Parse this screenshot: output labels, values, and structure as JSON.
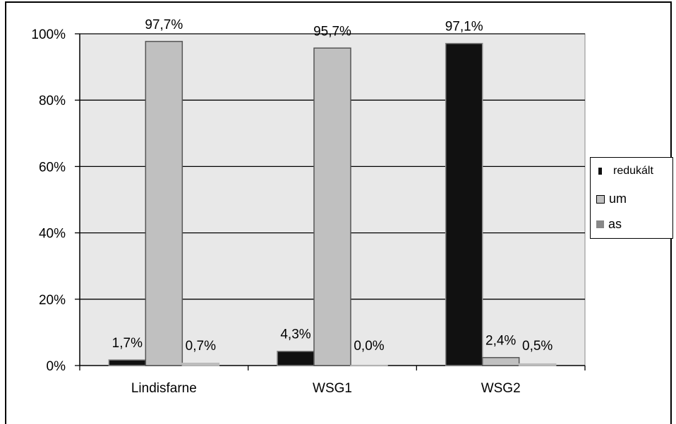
{
  "chart_data": {
    "type": "bar",
    "categories": [
      "Lindisfarne",
      "WSG1",
      "WSG2"
    ],
    "series": [
      {
        "name": "redukált",
        "values": [
          1.7,
          4.3,
          97.1
        ],
        "labels": [
          "1,7%",
          "4,3%",
          "97,1%"
        ]
      },
      {
        "name": "um",
        "values": [
          97.7,
          95.7,
          2.4
        ],
        "labels": [
          "97,7%",
          "95,7%",
          "2,4%"
        ]
      },
      {
        "name": "as",
        "values": [
          0.7,
          0.0,
          0.5
        ],
        "labels": [
          "0,7%",
          "0,0%",
          "0,5%"
        ]
      }
    ],
    "yticks": [
      "0%",
      "20%",
      "40%",
      "60%",
      "80%",
      "100%"
    ],
    "ylim": [
      0,
      100
    ],
    "grid": true,
    "legend_position": "right",
    "colors": {
      "redukált": "#111111",
      "um": "#c0c0c0",
      "as": "#bdbdbd",
      "plot_bg": "#e8e8e8"
    }
  }
}
